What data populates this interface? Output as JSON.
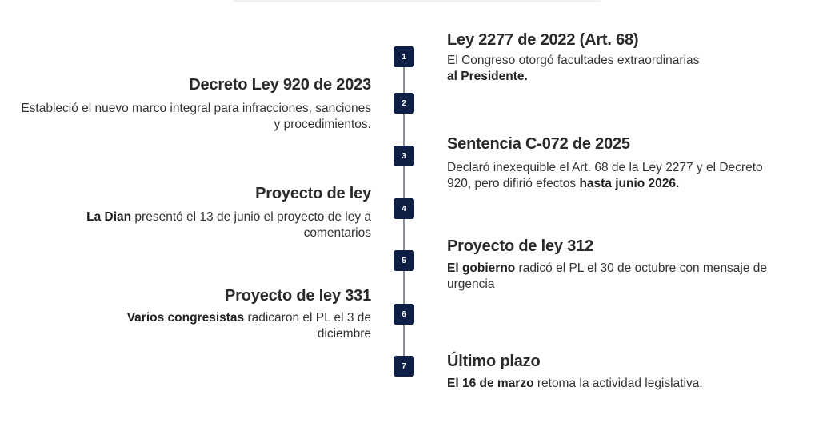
{
  "timeline": {
    "items": [
      {
        "number": "1",
        "side": "right",
        "title": "Ley 2277 de 2022 (Art. 68)",
        "desc_lead": "",
        "desc_main": "El Congreso otorgó facultades extraordinarias",
        "desc_bold": "al Presidente."
      },
      {
        "number": "2",
        "side": "left",
        "title": "Decreto Ley 920 de 2023",
        "desc_lead": "",
        "desc_main": "Estableció el nuevo marco integral para infracciones, sanciones y procedimientos.",
        "desc_bold": ""
      },
      {
        "number": "3",
        "side": "right",
        "title": "Sentencia C-072 de 2025",
        "desc_lead": "",
        "desc_main": "Declaró inexequible el Art. 68 de la Ley 2277 y el Decreto 920, pero difirió efectos ",
        "desc_bold": "hasta junio 2026."
      },
      {
        "number": "4",
        "side": "left",
        "title": "Proyecto de ley",
        "desc_lead": "La Dian",
        "desc_main": " presentó el 13 de junio el proyecto de ley a comentarios",
        "desc_bold": ""
      },
      {
        "number": "5",
        "side": "right",
        "title": "Proyecto de ley 312",
        "desc_lead": "El gobierno",
        "desc_main": " radicó el PL el 30 de octubre con mensaje de urgencia",
        "desc_bold": ""
      },
      {
        "number": "6",
        "side": "left",
        "title": "Proyecto de ley 331",
        "desc_lead": "Varios congresistas",
        "desc_main": " radicaron el PL el 3 de diciembre",
        "desc_bold": ""
      },
      {
        "number": "7",
        "side": "right",
        "title": "Último plazo",
        "desc_lead": "El 16 de marzo",
        "desc_main": " retoma la actividad legislativa.",
        "desc_bold": ""
      }
    ]
  }
}
